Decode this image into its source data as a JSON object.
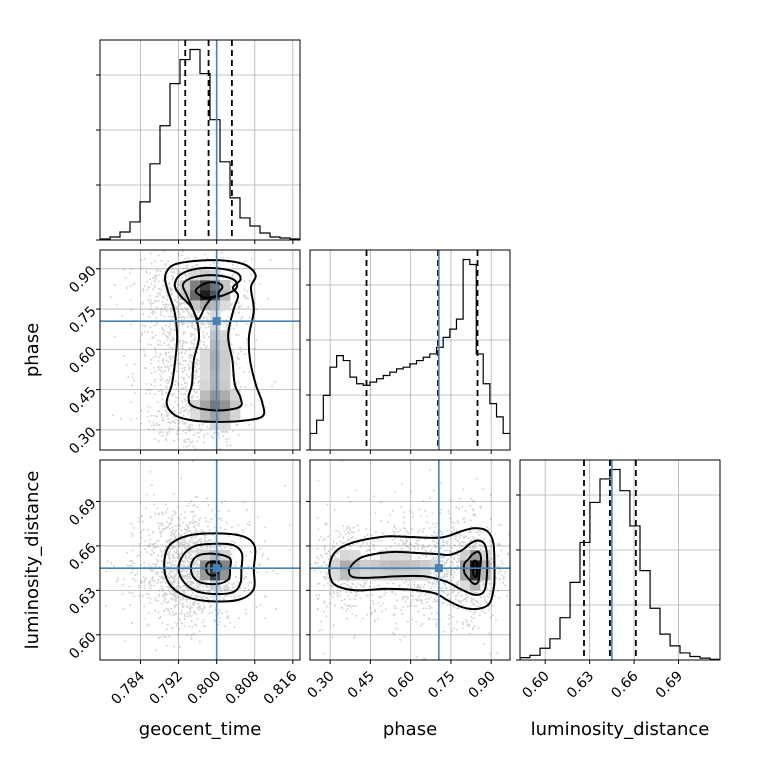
{
  "chart_data": {
    "type": "corner",
    "params": [
      "geocent_time",
      "phase",
      "luminosity_distance"
    ],
    "truth": {
      "geocent_time": 0.8,
      "phase": 0.705,
      "luminosity_distance": 0.645
    },
    "truth_color": "#4682b4",
    "grid": true,
    "axes": {
      "geocent_time": {
        "range": [
          0.7755,
          0.8175
        ],
        "ticks": [
          "0.784",
          "0.792",
          "0.800",
          "0.808",
          "0.816"
        ]
      },
      "phase": {
        "range": [
          0.225,
          0.97
        ],
        "ticks": [
          "0.30",
          "0.45",
          "0.60",
          "0.75",
          "0.90"
        ]
      },
      "luminosity_distance": {
        "range": [
          0.583,
          0.718
        ],
        "ticks": [
          "0.60",
          "0.63",
          "0.66",
          "0.69"
        ]
      }
    },
    "histograms": {
      "geocent_time": {
        "edges": [
          0.7755,
          0.7776,
          0.7797,
          0.7818,
          0.7839,
          0.786,
          0.7881,
          0.7902,
          0.7923,
          0.7944,
          0.7965,
          0.7986,
          0.8007,
          0.8028,
          0.8049,
          0.807,
          0.8091,
          0.8112,
          0.8133,
          0.8154,
          0.8175
        ],
        "counts": [
          0.5,
          1.5,
          4,
          9,
          19,
          38,
          57,
          78,
          90,
          95,
          83,
          60,
          39,
          21,
          11,
          7,
          3.5,
          1.5,
          1,
          0.5
        ],
        "quantiles": [
          0.7934,
          0.7983,
          0.8032
        ]
      },
      "phase": {
        "edges": [
          0.225,
          0.2498,
          0.2746,
          0.2994,
          0.3242,
          0.349,
          0.3738,
          0.3986,
          0.4234,
          0.4482,
          0.473,
          0.4978,
          0.5226,
          0.5474,
          0.5722,
          0.597,
          0.6218,
          0.6466,
          0.6714,
          0.6962,
          0.721,
          0.7458,
          0.7706,
          0.7954,
          0.8202,
          0.8442,
          0.8702,
          0.895,
          0.9198,
          0.9446,
          0.97
        ],
        "counts": [
          10,
          18,
          33,
          50,
          57,
          54,
          44,
          40,
          39,
          41,
          43,
          45,
          47,
          49,
          50,
          52,
          54,
          56,
          58,
          62,
          68,
          73,
          79,
          115,
          112,
          58,
          40,
          28,
          20,
          10
        ],
        "quantiles": [
          0.4355,
          0.702,
          0.849
        ]
      },
      "luminosity_distance": {
        "edges": [
          0.583,
          0.5897,
          0.5965,
          0.6032,
          0.61,
          0.6168,
          0.6235,
          0.6302,
          0.637,
          0.6438,
          0.6505,
          0.6572,
          0.664,
          0.6708,
          0.6775,
          0.6843,
          0.691,
          0.6977,
          0.7045,
          0.7113,
          0.718
        ],
        "counts": [
          1,
          2,
          5,
          9,
          18,
          33,
          50,
          67,
          77,
          81,
          72,
          57,
          38,
          22,
          11,
          6,
          3,
          1.5,
          0.8,
          0.3
        ],
        "quantiles": [
          0.6262,
          0.6437,
          0.6612
        ]
      }
    },
    "pairs": [
      {
        "x": "geocent_time",
        "y": "phase",
        "cores": [
          [
            0.7977,
            0.816,
            0.0024,
            0.032,
            1.0
          ],
          [
            0.8,
            0.56,
            0.0016,
            0.1,
            0.3
          ],
          [
            0.8,
            0.39,
            0.0028,
            0.04,
            0.45
          ]
        ],
        "levels": [
          [
            [
              0.8,
              0.8
            ],
            [
              0.8004,
              0.812
            ],
            [
              0.8012,
              0.831
            ],
            [
              0.8007,
              0.844
            ],
            [
              0.7992,
              0.85
            ],
            [
              0.7978,
              0.847
            ],
            [
              0.7963,
              0.833
            ],
            [
              0.7956,
              0.818
            ],
            [
              0.7962,
              0.804
            ],
            [
              0.7978,
              0.792
            ]
          ],
          [
            [
              0.8012,
              0.8
            ],
            [
              0.8037,
              0.82
            ],
            [
              0.8043,
              0.843
            ],
            [
              0.8032,
              0.863
            ],
            [
              0.8002,
              0.875
            ],
            [
              0.7968,
              0.874
            ],
            [
              0.7942,
              0.862
            ],
            [
              0.7929,
              0.84
            ],
            [
              0.7936,
              0.806
            ],
            [
              0.7947,
              0.762
            ],
            [
              0.7961,
              0.713
            ],
            [
              0.7976,
              0.76
            ],
            [
              0.799,
              0.79
            ]
          ],
          [
            [
              0.8034,
              0.83
            ],
            [
              0.805,
              0.86
            ],
            [
              0.804,
              0.887
            ],
            [
              0.8,
              0.902
            ],
            [
              0.7958,
              0.9
            ],
            [
              0.7923,
              0.877
            ],
            [
              0.7912,
              0.838
            ],
            [
              0.7924,
              0.8
            ],
            [
              0.7951,
              0.745
            ],
            [
              0.7963,
              0.65
            ],
            [
              0.7952,
              0.56
            ],
            [
              0.7948,
              0.47
            ],
            [
              0.7941,
              0.42
            ],
            [
              0.7951,
              0.387
            ],
            [
              0.8,
              0.372
            ],
            [
              0.8048,
              0.385
            ],
            [
              0.805,
              0.42
            ],
            [
              0.8038,
              0.47
            ],
            [
              0.8033,
              0.56
            ],
            [
              0.8024,
              0.65
            ],
            [
              0.8035,
              0.745
            ],
            [
              0.8045,
              0.8
            ]
          ],
          [
            [
              0.8072,
              0.83
            ],
            [
              0.8082,
              0.875
            ],
            [
              0.8062,
              0.913
            ],
            [
              0.802,
              0.93
            ],
            [
              0.796,
              0.93
            ],
            [
              0.791,
              0.915
            ],
            [
              0.7892,
              0.875
            ],
            [
              0.7897,
              0.82
            ],
            [
              0.7911,
              0.745
            ],
            [
              0.7917,
              0.65
            ],
            [
              0.7913,
              0.56
            ],
            [
              0.7906,
              0.47
            ],
            [
              0.7895,
              0.4
            ],
            [
              0.7912,
              0.355
            ],
            [
              0.795,
              0.335
            ],
            [
              0.8,
              0.33
            ],
            [
              0.805,
              0.333
            ],
            [
              0.8096,
              0.35
            ],
            [
              0.8096,
              0.4
            ],
            [
              0.8082,
              0.47
            ],
            [
              0.807,
              0.56
            ],
            [
              0.8068,
              0.65
            ],
            [
              0.8078,
              0.745
            ]
          ]
        ]
      },
      {
        "x": "geocent_time",
        "y": "luminosity_distance",
        "cores": [
          [
            0.7997,
            0.6445,
            0.0018,
            0.0055,
            1.0
          ]
        ],
        "levels": [
          [
            [
              0.8003,
              0.6445
            ],
            [
              0.8009,
              0.6465
            ],
            [
              0.8003,
              0.649
            ],
            [
              0.799,
              0.6495
            ],
            [
              0.798,
              0.648
            ],
            [
              0.7978,
              0.6445
            ],
            [
              0.7982,
              0.6412
            ],
            [
              0.7993,
              0.64
            ],
            [
              0.8003,
              0.6418
            ]
          ],
          [
            [
              0.8028,
              0.6445
            ],
            [
              0.8028,
              0.6515
            ],
            [
              0.8,
              0.6545
            ],
            [
              0.7965,
              0.654
            ],
            [
              0.7948,
              0.649
            ],
            [
              0.7948,
              0.641
            ],
            [
              0.7965,
              0.6355
            ],
            [
              0.8,
              0.6343
            ],
            [
              0.8025,
              0.6375
            ]
          ],
          [
            [
              0.8052,
              0.6445
            ],
            [
              0.8053,
              0.655
            ],
            [
              0.8035,
              0.6605
            ],
            [
              0.7995,
              0.6615
            ],
            [
              0.7955,
              0.66
            ],
            [
              0.793,
              0.654
            ],
            [
              0.792,
              0.6445
            ],
            [
              0.7932,
              0.6352
            ],
            [
              0.796,
              0.6292
            ],
            [
              0.8,
              0.6275
            ],
            [
              0.8036,
              0.629
            ],
            [
              0.805,
              0.635
            ]
          ],
          [
            [
              0.8078,
              0.6445
            ],
            [
              0.808,
              0.6595
            ],
            [
              0.8055,
              0.6665
            ],
            [
              0.8,
              0.6685
            ],
            [
              0.7938,
              0.6668
            ],
            [
              0.7899,
              0.6595
            ],
            [
              0.789,
              0.6445
            ],
            [
              0.7905,
              0.6325
            ],
            [
              0.7945,
              0.6248
            ],
            [
              0.8,
              0.6225
            ],
            [
              0.805,
              0.624
            ],
            [
              0.8078,
              0.631
            ]
          ]
        ]
      },
      {
        "x": "phase",
        "y": "luminosity_distance",
        "cores": [
          [
            0.838,
            0.6445,
            0.025,
            0.0065,
            1.0
          ],
          [
            0.55,
            0.646,
            0.12,
            0.006,
            0.22
          ],
          [
            0.36,
            0.645,
            0.03,
            0.006,
            0.25
          ]
        ],
        "levels": [
          [
            [
              0.84,
              0.639
            ],
            [
              0.846,
              0.64
            ],
            [
              0.848,
              0.644
            ],
            [
              0.846,
              0.649
            ],
            [
              0.838,
              0.65
            ],
            [
              0.832,
              0.648
            ],
            [
              0.832,
              0.642
            ]
          ],
          [
            [
              0.858,
              0.6445
            ],
            [
              0.862,
              0.652
            ],
            [
              0.852,
              0.656
            ],
            [
              0.832,
              0.6545
            ],
            [
              0.815,
              0.651
            ],
            [
              0.8,
              0.648
            ],
            [
              0.8,
              0.642
            ],
            [
              0.815,
              0.638
            ],
            [
              0.835,
              0.6345
            ],
            [
              0.852,
              0.636
            ]
          ],
          [
            [
              0.885,
              0.6445
            ],
            [
              0.88,
              0.659
            ],
            [
              0.858,
              0.6635
            ],
            [
              0.825,
              0.662
            ],
            [
              0.79,
              0.657
            ],
            [
              0.745,
              0.654
            ],
            [
              0.7,
              0.6545
            ],
            [
              0.65,
              0.655
            ],
            [
              0.6,
              0.6555
            ],
            [
              0.54,
              0.656
            ],
            [
              0.48,
              0.655
            ],
            [
              0.42,
              0.6525
            ],
            [
              0.385,
              0.648
            ],
            [
              0.37,
              0.643
            ],
            [
              0.385,
              0.639
            ],
            [
              0.45,
              0.6385
            ],
            [
              0.55,
              0.6395
            ],
            [
              0.65,
              0.6395
            ],
            [
              0.73,
              0.636
            ],
            [
              0.79,
              0.6305
            ],
            [
              0.84,
              0.627
            ],
            [
              0.875,
              0.63
            ]
          ],
          [
            [
              0.912,
              0.6445
            ],
            [
              0.908,
              0.662
            ],
            [
              0.885,
              0.67
            ],
            [
              0.84,
              0.672
            ],
            [
              0.79,
              0.67
            ],
            [
              0.745,
              0.667
            ],
            [
              0.7,
              0.6655
            ],
            [
              0.6,
              0.666
            ],
            [
              0.52,
              0.6665
            ],
            [
              0.45,
              0.665
            ],
            [
              0.38,
              0.662
            ],
            [
              0.325,
              0.657
            ],
            [
              0.3,
              0.649
            ],
            [
              0.3,
              0.639
            ],
            [
              0.325,
              0.633
            ],
            [
              0.4,
              0.63
            ],
            [
              0.5,
              0.631
            ],
            [
              0.6,
              0.6305
            ],
            [
              0.69,
              0.628
            ],
            [
              0.74,
              0.623
            ],
            [
              0.795,
              0.6185
            ],
            [
              0.85,
              0.6175
            ],
            [
              0.893,
              0.621
            ],
            [
              0.91,
              0.632
            ]
          ]
        ]
      }
    ]
  }
}
